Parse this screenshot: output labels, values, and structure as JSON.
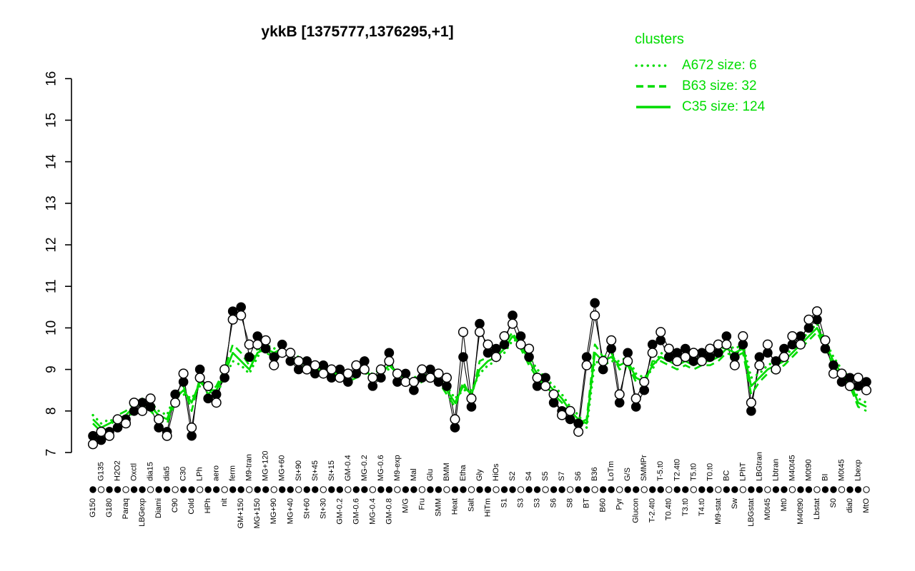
{
  "colors": {
    "cluster_green": "#00DC00",
    "point_black": "#000000"
  },
  "chart_data": {
    "type": "line",
    "title": "ykkB [1375777,1376295,+1]",
    "legend_title": "clusters",
    "legend_position": "top-right",
    "xlabel": "",
    "ylabel": "",
    "ylim": [
      7,
      16
    ],
    "yticks": [
      7,
      8,
      9,
      10,
      11,
      12,
      13,
      14,
      15,
      16
    ],
    "grid": false,
    "categories": [
      "G150",
      "G135",
      "G180",
      "H2O2",
      "Paraq",
      "Oxctl",
      "LBGexp",
      "dia15",
      "Diami",
      "dia5",
      "C90",
      "C30",
      "Cold",
      "LPh",
      "HPh",
      "aero",
      "nit",
      "ferm",
      "GM+150",
      "M9-tran",
      "MG+150",
      "MG+120",
      "MG+90",
      "MG+60",
      "MG+40",
      "St+90",
      "St+60",
      "St+45",
      "St+30",
      "St+15",
      "GM-0.2",
      "GM-0.4",
      "GM-0.6",
      "MG-0.2",
      "MG-0.4",
      "MG-0.6",
      "GM-0.8",
      "M9-exp",
      "M/G",
      "Mal",
      "Fru",
      "Glu",
      "SMM",
      "BMM",
      "Heat",
      "Etha",
      "Salt",
      "Gly",
      "HiTm",
      "HiOs",
      "S1",
      "S2",
      "S3",
      "S4",
      "S3",
      "S5",
      "S6",
      "S7",
      "S8",
      "S6",
      "BT",
      "B36",
      "B60",
      "LoTm",
      "Pyr",
      "G/S",
      "Glucon",
      "SMMPr",
      "T-2.4t0",
      "T-5.t0",
      "T0.4t0",
      "T2.4t0",
      "T3.t0",
      "T5.t0",
      "T4.t0",
      "T0.t0",
      "M9-stat",
      "BC",
      "Sw",
      "LPhT",
      "LBGstat",
      "LBGtran",
      "M0t45",
      "Lbtran",
      "Mt0",
      "M40t45",
      "M40t90",
      "M0t90",
      "Lbstat",
      "BI",
      "S0",
      "M0t45",
      "dia0",
      "Lbexp",
      "MtO"
    ],
    "series": [
      {
        "name": "A672",
        "legend": "A672 size: 6",
        "style": "dotted",
        "color": "#00DC00",
        "values": [
          7.9,
          7.7,
          7.8,
          7.7,
          7.8,
          8.0,
          8.1,
          8.2,
          8.0,
          7.9,
          8.4,
          8.4,
          8.3,
          8.6,
          8.6,
          8.4,
          8.8,
          9.2,
          9.1,
          8.9,
          9.3,
          9.6,
          9.5,
          9.6,
          9.4,
          9.3,
          9.2,
          9.1,
          8.9,
          8.8,
          9.0,
          8.9,
          9.0,
          8.9,
          8.9,
          9.0,
          9.0,
          9.0,
          8.7,
          8.8,
          8.9,
          8.8,
          8.9,
          8.6,
          8.3,
          8.5,
          8.5,
          8.9,
          9.1,
          9.2,
          9.4,
          9.7,
          9.7,
          9.3,
          9.0,
          8.8,
          8.6,
          8.4,
          8.1,
          7.9,
          7.6,
          9.2,
          9.1,
          9.2,
          9.2,
          9.3,
          8.9,
          8.8,
          9.0,
          9.4,
          9.3,
          9.2,
          9.3,
          9.2,
          9.3,
          9.3,
          9.4,
          9.6,
          9.5,
          9.6,
          8.8,
          8.9,
          9.1,
          9.2,
          9.3,
          9.5,
          9.7,
          9.9,
          10.1,
          9.7,
          9.3,
          9.0,
          8.8,
          8.3,
          8.2
        ]
      },
      {
        "name": "B63",
        "legend": "B63 size: 32",
        "style": "dashed",
        "color": "#00DC00",
        "values": [
          7.7,
          7.5,
          7.6,
          7.9,
          8.0,
          8.2,
          8.3,
          8.0,
          7.8,
          7.7,
          8.2,
          8.6,
          8.0,
          8.8,
          8.4,
          8.6,
          9.0,
          9.6,
          9.4,
          9.1,
          9.5,
          9.4,
          9.3,
          9.4,
          9.2,
          9.1,
          9.0,
          8.9,
          9.1,
          9.0,
          8.8,
          8.7,
          8.8,
          9.1,
          8.7,
          8.8,
          9.2,
          8.8,
          8.9,
          8.6,
          8.7,
          9.0,
          8.7,
          8.4,
          8.1,
          8.7,
          8.3,
          9.2,
          9.3,
          9.4,
          9.6,
          9.9,
          9.5,
          9.1,
          8.8,
          8.6,
          8.4,
          8.2,
          7.9,
          7.7,
          7.8,
          9.6,
          9.3,
          9.4,
          9.0,
          9.1,
          8.7,
          8.6,
          9.2,
          9.2,
          9.1,
          9.0,
          9.1,
          9.0,
          9.1,
          9.1,
          9.2,
          9.4,
          9.3,
          9.4,
          8.4,
          8.7,
          8.9,
          9.0,
          9.1,
          9.3,
          9.5,
          9.7,
          9.9,
          9.5,
          9.1,
          8.8,
          8.6,
          8.1,
          8.0
        ]
      },
      {
        "name": "C35",
        "legend": "C35 size: 124",
        "style": "solid",
        "color": "#00DC00",
        "values": [
          7.8,
          7.6,
          7.7,
          7.8,
          7.9,
          8.1,
          8.2,
          8.1,
          7.9,
          7.8,
          8.3,
          8.5,
          8.2,
          8.7,
          8.5,
          8.5,
          8.9,
          9.4,
          9.2,
          9.0,
          9.4,
          9.5,
          9.4,
          9.5,
          9.3,
          9.2,
          9.1,
          9.0,
          9.0,
          8.9,
          8.9,
          8.8,
          8.9,
          9.0,
          8.8,
          8.9,
          9.1,
          8.9,
          8.8,
          8.7,
          8.8,
          8.9,
          8.8,
          8.5,
          8.2,
          8.6,
          8.4,
          9.0,
          9.2,
          9.3,
          9.5,
          9.8,
          9.6,
          9.2,
          8.9,
          8.7,
          8.5,
          8.3,
          8.0,
          7.8,
          7.7,
          9.4,
          9.2,
          9.3,
          9.1,
          9.2,
          8.8,
          8.7,
          9.1,
          9.3,
          9.2,
          9.1,
          9.2,
          9.1,
          9.2,
          9.2,
          9.3,
          9.5,
          9.4,
          9.5,
          8.6,
          8.8,
          9.0,
          9.1,
          9.2,
          9.4,
          9.6,
          9.8,
          10.0,
          9.6,
          9.2,
          8.9,
          8.7,
          8.2,
          8.1
        ]
      },
      {
        "name": "gene-profile-filled",
        "legend": "",
        "style": "points-filled",
        "color": "#000000",
        "values": [
          7.4,
          7.3,
          7.5,
          7.6,
          7.8,
          8.0,
          8.2,
          8.1,
          7.6,
          7.5,
          8.4,
          8.7,
          7.4,
          9.0,
          8.3,
          8.4,
          8.8,
          10.4,
          10.5,
          9.3,
          9.8,
          9.5,
          9.3,
          9.6,
          9.2,
          9.0,
          9.2,
          8.9,
          9.1,
          8.8,
          9.0,
          8.7,
          8.9,
          9.2,
          8.6,
          8.8,
          9.4,
          8.7,
          8.9,
          8.5,
          8.8,
          9.0,
          8.7,
          8.6,
          7.6,
          9.3,
          8.1,
          10.1,
          9.4,
          9.5,
          9.6,
          10.3,
          9.8,
          9.3,
          8.6,
          8.8,
          8.2,
          8.0,
          7.8,
          7.7,
          9.3,
          10.6,
          9.0,
          9.5,
          8.2,
          9.4,
          8.1,
          8.5,
          9.6,
          9.7,
          9.3,
          9.4,
          9.5,
          9.2,
          9.4,
          9.3,
          9.4,
          9.8,
          9.3,
          9.6,
          8.0,
          9.3,
          9.4,
          9.2,
          9.5,
          9.6,
          9.8,
          10.0,
          10.2,
          9.5,
          9.1,
          8.7,
          8.8,
          8.6,
          8.7
        ]
      },
      {
        "name": "gene-profile-open",
        "legend": "",
        "style": "points-open",
        "color": "#000000",
        "values": [
          7.2,
          7.5,
          7.4,
          7.8,
          7.7,
          8.2,
          8.0,
          8.3,
          7.8,
          7.4,
          8.2,
          8.9,
          7.6,
          8.8,
          8.6,
          8.2,
          9.0,
          10.2,
          10.3,
          9.6,
          9.6,
          9.7,
          9.1,
          9.4,
          9.4,
          9.2,
          9.0,
          9.1,
          8.9,
          9.0,
          8.8,
          8.9,
          9.1,
          9.0,
          8.8,
          9.0,
          9.2,
          8.9,
          8.7,
          8.7,
          9.0,
          8.8,
          8.9,
          8.8,
          7.8,
          9.9,
          8.3,
          9.9,
          9.6,
          9.3,
          9.8,
          10.1,
          9.6,
          9.5,
          8.8,
          8.6,
          8.4,
          7.9,
          8.0,
          7.5,
          9.1,
          10.3,
          9.2,
          9.7,
          8.4,
          9.2,
          8.3,
          8.7,
          9.4,
          9.9,
          9.5,
          9.2,
          9.3,
          9.4,
          9.2,
          9.5,
          9.6,
          9.6,
          9.1,
          9.8,
          8.2,
          9.1,
          9.6,
          9.0,
          9.3,
          9.8,
          9.6,
          10.2,
          10.4,
          9.7,
          8.9,
          8.9,
          8.6,
          8.8,
          8.5
        ]
      }
    ]
  }
}
